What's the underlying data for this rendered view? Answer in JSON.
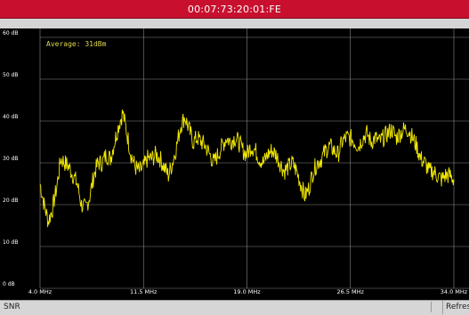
{
  "window": {
    "title": "00:07:73:20:01:FE"
  },
  "chart": {
    "average_label": "Average: 31dBm",
    "trace_color": "#f2e800",
    "grid_color": "#8a8a8a",
    "background": "#000000"
  },
  "chart_data": {
    "type": "line",
    "title": "",
    "xlabel": "",
    "ylabel": "",
    "xlim": [
      4.0,
      34.0
    ],
    "ylim": [
      0,
      60
    ],
    "grid": true,
    "y_ticks": [
      "60 dB",
      "50 dB",
      "40 dB",
      "30 dB",
      "20 dB",
      "10 dB",
      "0 dB"
    ],
    "x_ticks": [
      "4.0 MHz",
      "11.5 MHz",
      "19.0 MHz",
      "26.5 MHz",
      "34.0 MHz"
    ],
    "series": [
      {
        "x": [
          4.0,
          4.3,
          4.6,
          4.9,
          5.2,
          5.5,
          5.8,
          6.1,
          6.4,
          6.7,
          7.0,
          7.3,
          7.6,
          7.9,
          8.2,
          8.5,
          8.8,
          9.1,
          9.4,
          9.7,
          10.0,
          10.3,
          10.6,
          10.9,
          11.2,
          11.5,
          11.8,
          12.1,
          12.4,
          12.7,
          13.0,
          13.3,
          13.6,
          13.9,
          14.2,
          14.5,
          14.8,
          15.1,
          15.4,
          15.7,
          16.0,
          16.3,
          16.6,
          16.9,
          17.2,
          17.5,
          17.8,
          18.1,
          18.4,
          18.7,
          19.0,
          19.3,
          19.6,
          19.9,
          20.2,
          20.5,
          20.8,
          21.1,
          21.4,
          21.7,
          22.0,
          22.3,
          22.6,
          22.9,
          23.2,
          23.5,
          23.8,
          24.1,
          24.4,
          24.7,
          25.0,
          25.3,
          25.6,
          25.9,
          26.2,
          26.5,
          26.8,
          27.1,
          27.4,
          27.7,
          28.0,
          28.3,
          28.6,
          28.9,
          29.2,
          29.5,
          29.8,
          30.1,
          30.4,
          30.7,
          31.0,
          31.3,
          31.6,
          31.9,
          32.2,
          32.5,
          32.8,
          33.1,
          33.4,
          33.7,
          34.0
        ],
        "y": [
          25,
          20,
          16,
          19,
          24,
          31,
          30,
          29,
          27,
          25,
          20,
          19,
          22,
          27,
          30,
          30,
          32,
          31,
          35,
          39,
          42,
          37,
          32,
          29,
          28,
          29,
          31,
          31,
          32,
          31,
          29,
          27,
          30,
          34,
          39,
          41,
          38,
          35,
          36,
          35,
          34,
          32,
          30,
          32,
          34,
          36,
          35,
          36,
          35,
          33,
          32,
          34,
          33,
          31,
          30,
          32,
          33,
          32,
          30,
          28,
          29,
          30,
          28,
          25,
          22,
          24,
          28,
          30,
          31,
          33,
          34,
          33,
          32,
          35,
          36,
          36,
          35,
          34,
          36,
          37,
          35,
          36,
          35,
          36,
          37,
          38,
          36,
          37,
          38,
          38,
          36,
          34,
          31,
          30,
          28,
          28,
          27,
          26,
          27,
          27,
          26
        ]
      }
    ]
  },
  "status": {
    "label": "SNR",
    "refresh_label": "Refresh"
  }
}
